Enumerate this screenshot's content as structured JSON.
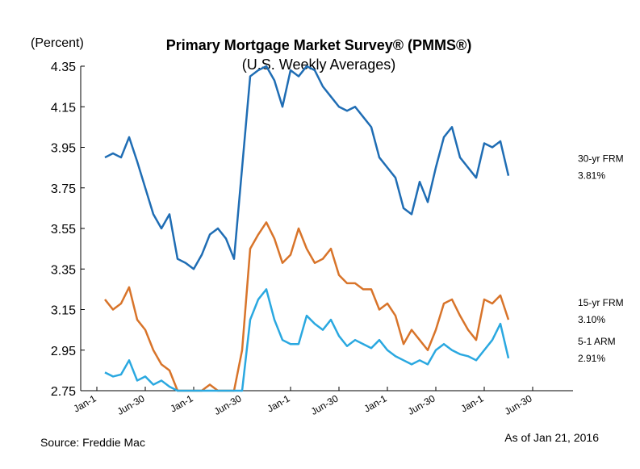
{
  "chart_data": {
    "type": "line",
    "title": "Primary Mortgage Market Survey® (PMMS®)",
    "subtitle": "(U.S. Weekly Averages)",
    "y_label": "(Percent)",
    "source": "Source: Freddie Mac",
    "as_of": "As of Jan 21, 2016",
    "categories": [
      "Jan-1",
      null,
      null,
      null,
      null,
      null,
      "Jun-30",
      null,
      null,
      null,
      null,
      null,
      "Jan-1",
      null,
      null,
      null,
      null,
      null,
      "Jun-30",
      null,
      null,
      null,
      null,
      null,
      "Jan-1",
      null,
      null,
      null,
      null,
      null,
      "Jun-30",
      null,
      null,
      null,
      null,
      null,
      "Jan-1",
      null,
      null,
      null,
      null,
      null,
      "Jun-30",
      null,
      null,
      null,
      null,
      null,
      "Jan-1",
      null,
      null,
      null,
      null,
      null,
      "Jun-30",
      null,
      null,
      null,
      null,
      null
    ],
    "ylim": [
      2.75,
      4.35
    ],
    "yticks": [
      2.75,
      2.95,
      3.15,
      3.35,
      3.55,
      3.75,
      3.95,
      4.15,
      4.35
    ],
    "series": [
      {
        "name": "30-yr FRM",
        "color": "#1f6db4",
        "end_label": "3.81%",
        "values": [
          null,
          3.9,
          3.92,
          3.9,
          4.0,
          3.88,
          3.75,
          3.62,
          3.55,
          3.62,
          3.4,
          3.38,
          3.35,
          3.42,
          3.52,
          3.55,
          3.5,
          3.4,
          3.85,
          4.3,
          4.33,
          4.35,
          4.28,
          4.15,
          4.33,
          4.3,
          4.35,
          4.33,
          4.25,
          4.2,
          4.15,
          4.13,
          4.15,
          4.1,
          4.05,
          3.9,
          3.85,
          3.8,
          3.65,
          3.62,
          3.78,
          3.68,
          3.85,
          4.0,
          4.05,
          3.9,
          3.85,
          3.8,
          3.97,
          3.95,
          3.98,
          3.81,
          null,
          null,
          null,
          null,
          null,
          null,
          null,
          null
        ]
      },
      {
        "name": "15-yr FRM",
        "color": "#d8742a",
        "end_label": "3.10%",
        "values": [
          null,
          3.2,
          3.15,
          3.18,
          3.26,
          3.1,
          3.05,
          2.95,
          2.88,
          2.85,
          2.75,
          2.75,
          2.75,
          2.75,
          2.78,
          2.75,
          2.75,
          2.75,
          2.95,
          3.45,
          3.52,
          3.58,
          3.5,
          3.38,
          3.42,
          3.55,
          3.45,
          3.38,
          3.4,
          3.45,
          3.32,
          3.28,
          3.28,
          3.25,
          3.25,
          3.15,
          3.18,
          3.12,
          2.98,
          3.05,
          3.0,
          2.95,
          3.05,
          3.18,
          3.2,
          3.12,
          3.05,
          3.0,
          3.2,
          3.18,
          3.22,
          3.1,
          null,
          null,
          null,
          null,
          null,
          null,
          null,
          null
        ]
      },
      {
        "name": "5-1 ARM",
        "color": "#2aa8e0",
        "end_label": "2.91%",
        "values": [
          null,
          2.84,
          2.82,
          2.83,
          2.9,
          2.8,
          2.82,
          2.78,
          2.8,
          2.77,
          2.75,
          2.75,
          2.75,
          2.75,
          2.75,
          2.75,
          2.75,
          2.75,
          2.75,
          3.1,
          3.2,
          3.25,
          3.1,
          3.0,
          2.98,
          2.98,
          3.12,
          3.08,
          3.05,
          3.1,
          3.02,
          2.97,
          3.0,
          2.98,
          2.96,
          3.0,
          2.95,
          2.92,
          2.9,
          2.88,
          2.9,
          2.88,
          2.95,
          2.98,
          2.95,
          2.93,
          2.92,
          2.9,
          2.95,
          3.0,
          3.08,
          2.91,
          null,
          null,
          null,
          null,
          null,
          null,
          null,
          null
        ]
      }
    ]
  }
}
